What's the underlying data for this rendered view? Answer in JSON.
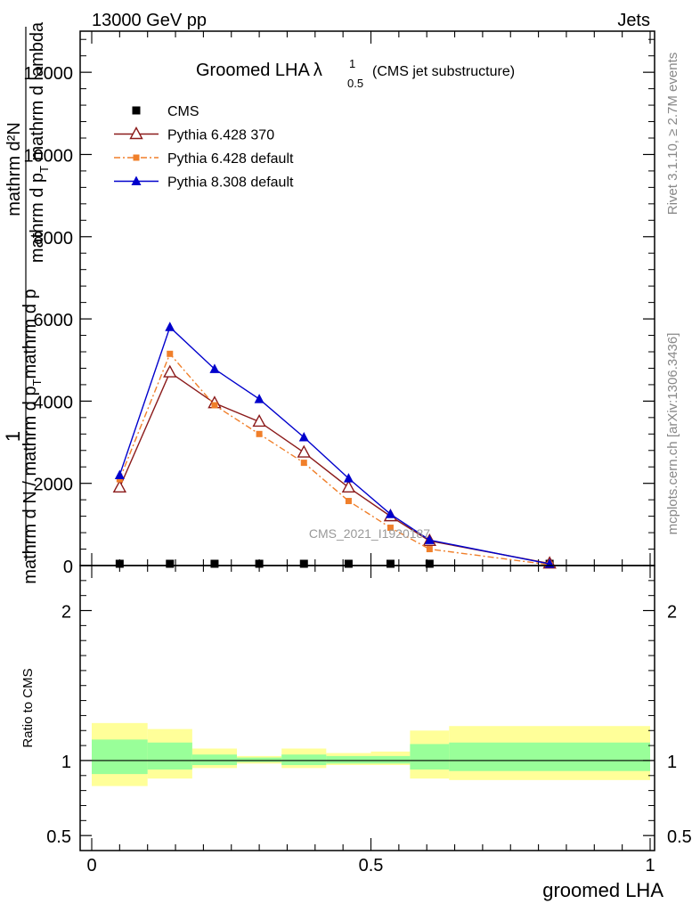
{
  "header": {
    "energy_label": "13000 GeV pp",
    "channel_label": "Jets"
  },
  "side_text": {
    "rivet": "Rivet 3.1.10, ≥ 2.7M events",
    "mcplots": "mcplots.cern.ch [arXiv:1306.3436]"
  },
  "chart_data": [
    {
      "type": "line",
      "panel": "main",
      "title": "Groomed LHA",
      "title_symbol": "λ",
      "title_sup": "1",
      "title_sub": "0.5",
      "subtitle": "(CMS jet substructure)",
      "watermark": "CMS_2021_I1920187",
      "ylabel_top": "1",
      "ylabel_frac_num": "mathrm d²N",
      "ylabel_frac_den": "mathrm d p",
      "ylabel_frac_den_sub": "T",
      "ylabel_frac_den_tail": " mathrm d lambda",
      "ylabel_main": "mathrm d N / mathrm d p",
      "ylabel_main_sub": "T",
      "ylabel_main_tail": "mathrm d p",
      "xlim": [
        0,
        1
      ],
      "ylim": [
        0,
        13000
      ],
      "y_ticks": [
        0,
        2000,
        4000,
        6000,
        8000,
        10000,
        12000
      ],
      "y_tick_labels": [
        "0",
        "2000",
        "4000",
        "6000",
        "8000",
        "10000",
        "12000"
      ],
      "legend_position": "top-left",
      "x": [
        0.05,
        0.14,
        0.22,
        0.3,
        0.38,
        0.46,
        0.535,
        0.605,
        0.82
      ],
      "series": [
        {
          "name": "CMS",
          "marker": "square",
          "color": "#000000",
          "values": [
            0,
            0,
            0,
            0,
            0,
            0,
            0,
            0,
            0
          ]
        },
        {
          "name": "Pythia 6.428 370",
          "marker": "open-triangle",
          "color": "#8b1a1a",
          "values": [
            1900,
            4700,
            3950,
            3500,
            2750,
            1900,
            1200,
            600,
            50
          ]
        },
        {
          "name": "Pythia 6.428 default",
          "marker": "small-square",
          "color": "#f07f2a",
          "dash": "dashdot",
          "values": [
            2100,
            5150,
            3900,
            3200,
            2500,
            1570,
            920,
            400,
            20
          ]
        },
        {
          "name": "Pythia 8.308 default",
          "marker": "triangle",
          "color": "#0000cc",
          "values": [
            2200,
            5800,
            4780,
            4050,
            3120,
            2120,
            1250,
            620,
            40
          ]
        }
      ]
    },
    {
      "type": "area",
      "panel": "ratio",
      "ylabel": "Ratio to CMS",
      "xlabel": "groomed LHA",
      "xlim": [
        0,
        1
      ],
      "ylim": [
        0.4,
        2.3
      ],
      "x_ticks": [
        0,
        0.5,
        1
      ],
      "x_tick_labels": [
        "0",
        "0.5",
        "1"
      ],
      "y_ticks": [
        0.5,
        1,
        2
      ],
      "y_tick_labels": [
        "0.5",
        "1",
        "2"
      ],
      "bin_edges": [
        0,
        0.1,
        0.18,
        0.26,
        0.34,
        0.42,
        0.5,
        0.57,
        0.64,
        1.0
      ],
      "band_outer": {
        "color": "#ffff99",
        "low": [
          0.83,
          0.88,
          0.95,
          0.98,
          0.95,
          0.97,
          0.97,
          0.88,
          0.87
        ],
        "high": [
          1.25,
          1.21,
          1.08,
          1.03,
          1.08,
          1.05,
          1.06,
          1.2,
          1.23
        ]
      },
      "band_inner": {
        "color": "#99ff99",
        "low": [
          0.91,
          0.94,
          0.97,
          0.99,
          0.97,
          0.98,
          0.98,
          0.94,
          0.93
        ],
        "high": [
          1.14,
          1.12,
          1.04,
          1.02,
          1.04,
          1.03,
          1.03,
          1.11,
          1.12
        ]
      },
      "reference_line": 1
    }
  ]
}
